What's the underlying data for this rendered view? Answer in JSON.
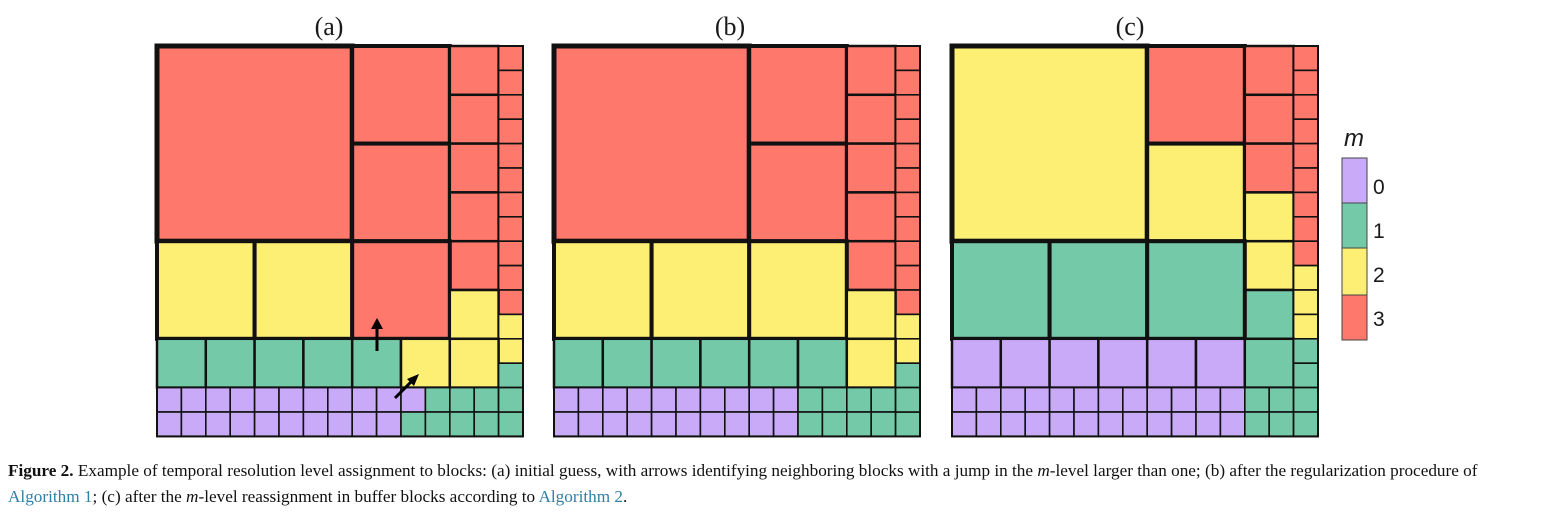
{
  "colors": {
    "m0": "#c9aaf8",
    "m1": "#74c9a8",
    "m2": "#fdee74",
    "m3": "#fe786c",
    "outline": "#111111"
  },
  "panels": [
    {
      "label": "(a)",
      "grid": [
        "3333333333333333333333333333333333333333333333333",
        "3333333333333333333333333333333333333333333333333",
        "3333333333333333333333333333333333333333333333333",
        "3333333333333333333333333333333333333333333333333",
        "3333333333333333333333333333333333333333333333333",
        "3333333333333333333333333333333333333333333333333",
        "3333333333333333333333333333333333333333333333333",
        "3333333333333333333333333333333333333333333333333",
        "2222222222222222222222222222222222222333333333333",
        "2222222222222222222222222222222222222333333333333",
        "2222222222222222222222222222222222222333333333333",
        "2222222222222222222222222222222222222222222222233",
        "2222222222222222222222222222222222222222222222222",
        "1111111111111111111111111111112222222222222222222",
        "1111111111111111111111111111112222222222222222211",
        "0000000000000000000000000000000001111111111111111",
        "0000000000000000000000000000000001111111111111111"
      ],
      "blocks": [
        [
          0,
          0,
          8,
          8
        ],
        [
          8,
          0,
          4,
          4
        ],
        [
          8,
          4,
          4,
          4
        ],
        [
          12,
          0,
          2,
          2
        ],
        [
          12,
          2,
          2,
          2
        ],
        [
          12,
          4,
          2,
          2
        ],
        [
          12,
          6,
          2,
          2
        ],
        [
          12,
          8,
          2,
          2
        ],
        [
          14,
          0,
          1,
          1
        ],
        [
          14,
          1,
          1,
          1
        ],
        [
          14,
          2,
          1,
          1
        ],
        [
          14,
          3,
          1,
          1
        ],
        [
          14,
          4,
          1,
          1
        ],
        [
          14,
          5,
          1,
          1
        ],
        [
          14,
          6,
          1,
          1
        ],
        [
          14,
          7,
          1,
          1
        ],
        [
          14,
          8,
          1,
          1
        ],
        [
          14,
          9,
          1,
          1
        ],
        [
          14,
          10,
          1,
          1
        ],
        [
          0,
          8,
          4,
          4
        ],
        [
          4,
          8,
          4,
          4
        ],
        [
          8,
          8,
          4,
          4
        ],
        [
          12,
          10,
          2,
          2
        ],
        [
          14,
          11,
          1,
          1
        ],
        [
          14,
          12,
          1,
          1
        ],
        [
          10,
          12,
          2,
          2
        ],
        [
          12,
          12,
          2,
          2
        ],
        [
          14,
          13,
          1,
          1
        ],
        [
          0,
          12,
          2,
          2
        ],
        [
          2,
          12,
          2,
          2
        ],
        [
          4,
          12,
          2,
          2
        ],
        [
          6,
          12,
          2,
          2
        ],
        [
          8,
          12,
          2,
          2
        ],
        [
          14,
          14,
          1,
          1
        ],
        [
          0,
          14,
          1,
          1
        ],
        [
          1,
          14,
          1,
          1
        ],
        [
          2,
          14,
          1,
          1
        ],
        [
          3,
          14,
          1,
          1
        ],
        [
          4,
          14,
          1,
          1
        ],
        [
          5,
          14,
          1,
          1
        ],
        [
          6,
          14,
          1,
          1
        ],
        [
          7,
          14,
          1,
          1
        ],
        [
          8,
          14,
          1,
          1
        ],
        [
          9,
          14,
          1,
          1
        ],
        [
          10,
          14,
          1,
          1
        ],
        [
          11,
          14,
          1,
          1
        ],
        [
          12,
          14,
          1,
          1
        ],
        [
          13,
          14,
          1,
          1
        ],
        [
          14,
          15,
          1,
          1
        ],
        [
          0,
          15,
          1,
          1
        ],
        [
          1,
          15,
          1,
          1
        ],
        [
          2,
          15,
          1,
          1
        ],
        [
          3,
          15,
          1,
          1
        ],
        [
          4,
          15,
          1,
          1
        ],
        [
          5,
          15,
          1,
          1
        ],
        [
          6,
          15,
          1,
          1
        ],
        [
          7,
          15,
          1,
          1
        ],
        [
          8,
          15,
          1,
          1
        ],
        [
          9,
          15,
          1,
          1
        ],
        [
          10,
          15,
          1,
          1
        ],
        [
          11,
          15,
          1,
          1
        ],
        [
          12,
          15,
          1,
          1
        ],
        [
          13,
          15,
          1,
          1
        ],
        [
          14,
          15,
          1,
          1
        ]
      ]
    },
    {
      "label": "(b)"
    },
    {
      "label": "(c)"
    }
  ],
  "legend": {
    "title": "m",
    "levels": [
      "0",
      "1",
      "2",
      "3"
    ]
  },
  "caption": {
    "label": "Figure 2.",
    "text1": " Example of temporal resolution level assignment to blocks: (a) initial guess, with arrows identifying neighboring blocks with a jump in the ",
    "m1": "m",
    "text2": "-level larger than one; (b) after the regularization procedure of ",
    "link1": "Algorithm 1",
    "text3": "; (c) after the ",
    "m2": "m",
    "text4": "-level reassignment in buffer blocks according to ",
    "link2": "Algorithm 2",
    "text5": "."
  }
}
